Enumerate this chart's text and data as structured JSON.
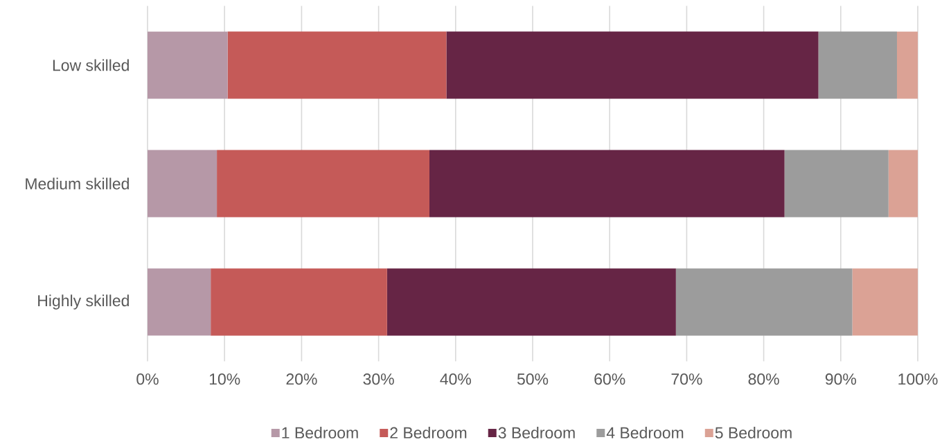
{
  "chart_data": {
    "type": "bar",
    "orientation": "horizontal",
    "stacked": true,
    "categories": [
      "Low skilled",
      "Medium skilled",
      "Highly skilled"
    ],
    "series": [
      {
        "name": "1 Bedroom",
        "color": "#b698a7",
        "values": [
          10.4,
          9.0,
          8.2
        ]
      },
      {
        "name": "2 Bedroom",
        "color": "#c55a58",
        "values": [
          28.4,
          27.6,
          22.9
        ]
      },
      {
        "name": "3 Bedroom",
        "color": "#662545",
        "values": [
          48.3,
          46.1,
          37.5
        ]
      },
      {
        "name": "4 Bedroom",
        "color": "#9c9c9c",
        "values": [
          10.2,
          13.5,
          22.9
        ]
      },
      {
        "name": "5 Bedroom",
        "color": "#dba295",
        "values": [
          2.7,
          3.8,
          8.5
        ]
      }
    ],
    "xlim": [
      0,
      100
    ],
    "xticks": [
      {
        "value": 0,
        "label": "0%"
      },
      {
        "value": 10,
        "label": "10%"
      },
      {
        "value": 20,
        "label": "20%"
      },
      {
        "value": 30,
        "label": "30%"
      },
      {
        "value": 40,
        "label": "40%"
      },
      {
        "value": 50,
        "label": "50%"
      },
      {
        "value": 60,
        "label": "60%"
      },
      {
        "value": 70,
        "label": "70%"
      },
      {
        "value": 80,
        "label": "80%"
      },
      {
        "value": 90,
        "label": "90%"
      },
      {
        "value": 100,
        "label": "100%"
      }
    ],
    "grid": "x",
    "legend": "bottom"
  }
}
